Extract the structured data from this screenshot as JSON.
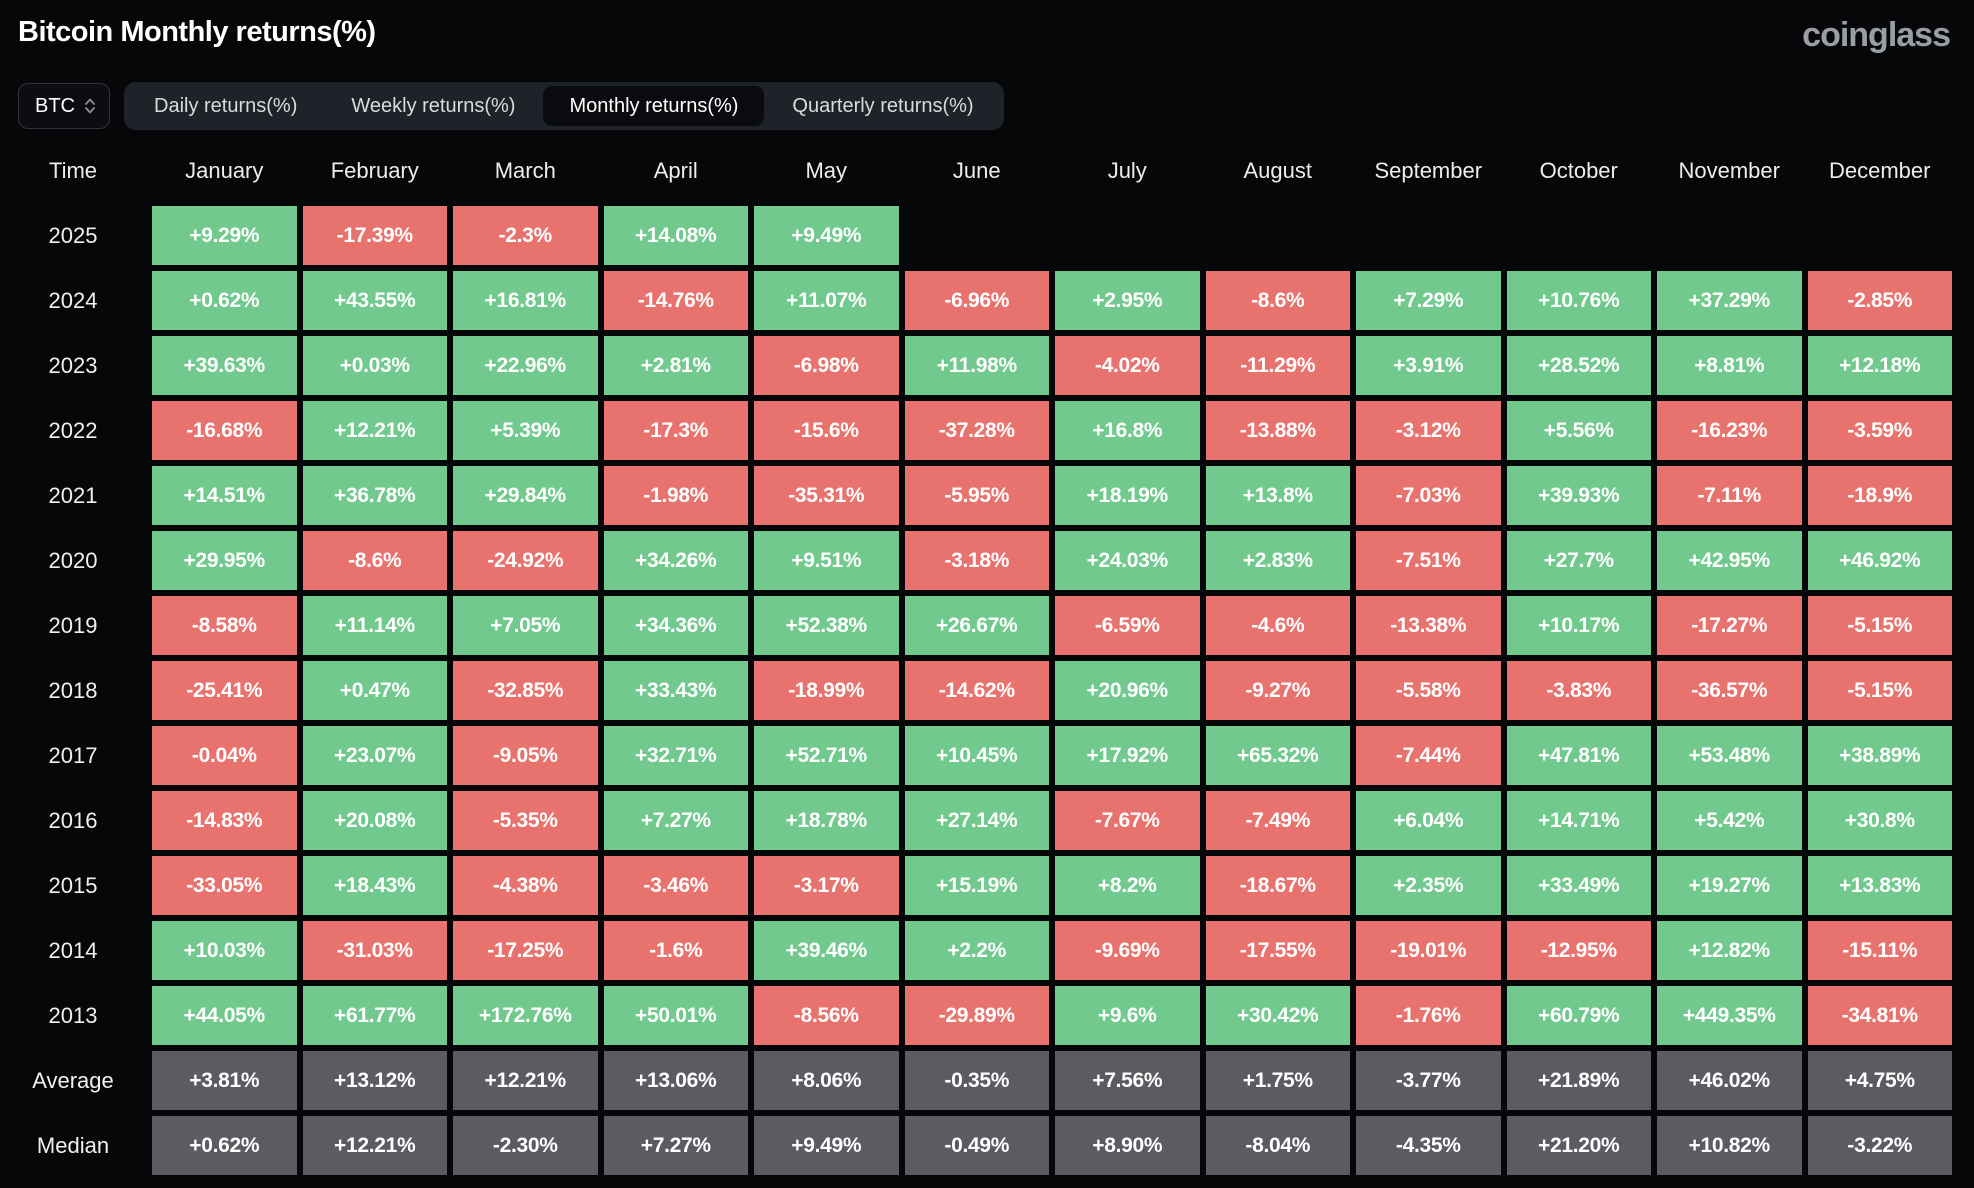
{
  "header": {
    "title": "Bitcoin Monthly returns(%)",
    "logo": "coinglass"
  },
  "controls": {
    "symbol_select": {
      "value": "BTC"
    },
    "tabs": [
      {
        "label": "Daily returns(%)",
        "active": false
      },
      {
        "label": "Weekly returns(%)",
        "active": false
      },
      {
        "label": "Monthly returns(%)",
        "active": true
      },
      {
        "label": "Quarterly returns(%)",
        "active": false
      }
    ]
  },
  "colors": {
    "positive": "#71C98E",
    "negative": "#E8736E",
    "summary": "#5A5C61",
    "background": "#060709",
    "tab_bar": "#1F2228",
    "tab_active": "#0A0B0E",
    "logo_gray": "#9A9DA3"
  },
  "table": {
    "columns": [
      "Time",
      "January",
      "February",
      "March",
      "April",
      "May",
      "June",
      "July",
      "August",
      "September",
      "October",
      "November",
      "December"
    ],
    "rows": [
      {
        "label": "2025",
        "summary": false,
        "values": [
          "+9.29%",
          "-17.39%",
          "-2.3%",
          "+14.08%",
          "+9.49%",
          null,
          null,
          null,
          null,
          null,
          null,
          null
        ]
      },
      {
        "label": "2024",
        "summary": false,
        "values": [
          "+0.62%",
          "+43.55%",
          "+16.81%",
          "-14.76%",
          "+11.07%",
          "-6.96%",
          "+2.95%",
          "-8.6%",
          "+7.29%",
          "+10.76%",
          "+37.29%",
          "-2.85%"
        ]
      },
      {
        "label": "2023",
        "summary": false,
        "values": [
          "+39.63%",
          "+0.03%",
          "+22.96%",
          "+2.81%",
          "-6.98%",
          "+11.98%",
          "-4.02%",
          "-11.29%",
          "+3.91%",
          "+28.52%",
          "+8.81%",
          "+12.18%"
        ]
      },
      {
        "label": "2022",
        "summary": false,
        "values": [
          "-16.68%",
          "+12.21%",
          "+5.39%",
          "-17.3%",
          "-15.6%",
          "-37.28%",
          "+16.8%",
          "-13.88%",
          "-3.12%",
          "+5.56%",
          "-16.23%",
          "-3.59%"
        ]
      },
      {
        "label": "2021",
        "summary": false,
        "values": [
          "+14.51%",
          "+36.78%",
          "+29.84%",
          "-1.98%",
          "-35.31%",
          "-5.95%",
          "+18.19%",
          "+13.8%",
          "-7.03%",
          "+39.93%",
          "-7.11%",
          "-18.9%"
        ]
      },
      {
        "label": "2020",
        "summary": false,
        "values": [
          "+29.95%",
          "-8.6%",
          "-24.92%",
          "+34.26%",
          "+9.51%",
          "-3.18%",
          "+24.03%",
          "+2.83%",
          "-7.51%",
          "+27.7%",
          "+42.95%",
          "+46.92%"
        ]
      },
      {
        "label": "2019",
        "summary": false,
        "values": [
          "-8.58%",
          "+11.14%",
          "+7.05%",
          "+34.36%",
          "+52.38%",
          "+26.67%",
          "-6.59%",
          "-4.6%",
          "-13.38%",
          "+10.17%",
          "-17.27%",
          "-5.15%"
        ]
      },
      {
        "label": "2018",
        "summary": false,
        "values": [
          "-25.41%",
          "+0.47%",
          "-32.85%",
          "+33.43%",
          "-18.99%",
          "-14.62%",
          "+20.96%",
          "-9.27%",
          "-5.58%",
          "-3.83%",
          "-36.57%",
          "-5.15%"
        ]
      },
      {
        "label": "2017",
        "summary": false,
        "values": [
          "-0.04%",
          "+23.07%",
          "-9.05%",
          "+32.71%",
          "+52.71%",
          "+10.45%",
          "+17.92%",
          "+65.32%",
          "-7.44%",
          "+47.81%",
          "+53.48%",
          "+38.89%"
        ]
      },
      {
        "label": "2016",
        "summary": false,
        "values": [
          "-14.83%",
          "+20.08%",
          "-5.35%",
          "+7.27%",
          "+18.78%",
          "+27.14%",
          "-7.67%",
          "-7.49%",
          "+6.04%",
          "+14.71%",
          "+5.42%",
          "+30.8%"
        ]
      },
      {
        "label": "2015",
        "summary": false,
        "values": [
          "-33.05%",
          "+18.43%",
          "-4.38%",
          "-3.46%",
          "-3.17%",
          "+15.19%",
          "+8.2%",
          "-18.67%",
          "+2.35%",
          "+33.49%",
          "+19.27%",
          "+13.83%"
        ]
      },
      {
        "label": "2014",
        "summary": false,
        "values": [
          "+10.03%",
          "-31.03%",
          "-17.25%",
          "-1.6%",
          "+39.46%",
          "+2.2%",
          "-9.69%",
          "-17.55%",
          "-19.01%",
          "-12.95%",
          "+12.82%",
          "-15.11%"
        ]
      },
      {
        "label": "2013",
        "summary": false,
        "values": [
          "+44.05%",
          "+61.77%",
          "+172.76%",
          "+50.01%",
          "-8.56%",
          "-29.89%",
          "+9.6%",
          "+30.42%",
          "-1.76%",
          "+60.79%",
          "+449.35%",
          "-34.81%"
        ]
      },
      {
        "label": "Average",
        "summary": true,
        "values": [
          "+3.81%",
          "+13.12%",
          "+12.21%",
          "+13.06%",
          "+8.06%",
          "-0.35%",
          "+7.56%",
          "+1.75%",
          "-3.77%",
          "+21.89%",
          "+46.02%",
          "+4.75%"
        ]
      },
      {
        "label": "Median",
        "summary": true,
        "values": [
          "+0.62%",
          "+12.21%",
          "-2.30%",
          "+7.27%",
          "+9.49%",
          "-0.49%",
          "+8.90%",
          "-8.04%",
          "-4.35%",
          "+21.20%",
          "+10.82%",
          "-3.22%"
        ]
      }
    ]
  }
}
